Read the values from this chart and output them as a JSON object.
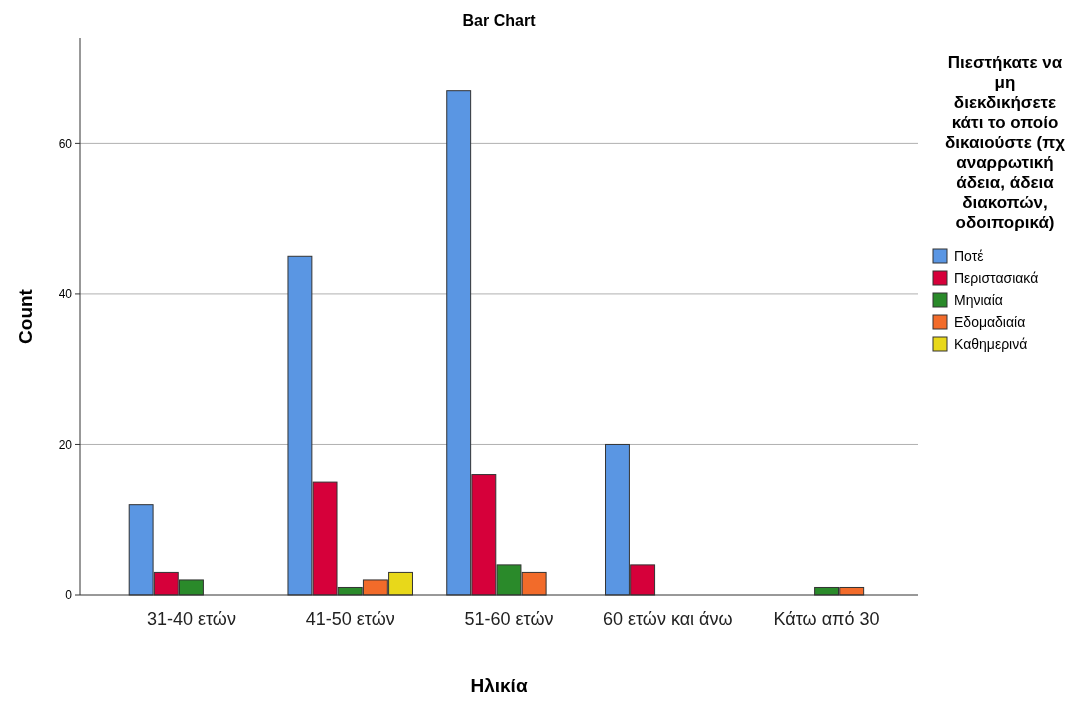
{
  "chart_data": {
    "type": "bar",
    "title": "Bar Chart",
    "xlabel": "Ηλικία",
    "ylabel": "Count",
    "legend_title": "Πιεστήκατε να μη διεκδικήσετε κάτι το οποίο δικαιούστε (πχ αναρρωτική άδεια, άδεια διακοπών, οδοιπορικά)",
    "categories": [
      "31-40 ετών",
      "41-50 ετών",
      "51-60 ετών",
      "60 ετών και άνω",
      "Κάτω από 30"
    ],
    "series": [
      {
        "name": "Ποτέ",
        "color": "#5a96e3",
        "values": [
          12,
          45,
          67,
          20,
          null
        ]
      },
      {
        "name": "Περιστασιακά",
        "color": "#d6003a",
        "values": [
          3,
          15,
          16,
          4,
          null
        ]
      },
      {
        "name": "Μηνιαία",
        "color": "#2a8a2a",
        "values": [
          2,
          1,
          4,
          null,
          1
        ]
      },
      {
        "name": "Εδομαδιαία",
        "color": "#f26b2a",
        "values": [
          null,
          2,
          3,
          null,
          1
        ]
      },
      {
        "name": "Καθημερινά",
        "color": "#e8d81a",
        "values": [
          null,
          3,
          null,
          null,
          null
        ]
      }
    ],
    "ylim": [
      0,
      74
    ],
    "yticks": [
      0,
      20,
      40,
      60
    ],
    "grid": "y",
    "legend": "right"
  }
}
